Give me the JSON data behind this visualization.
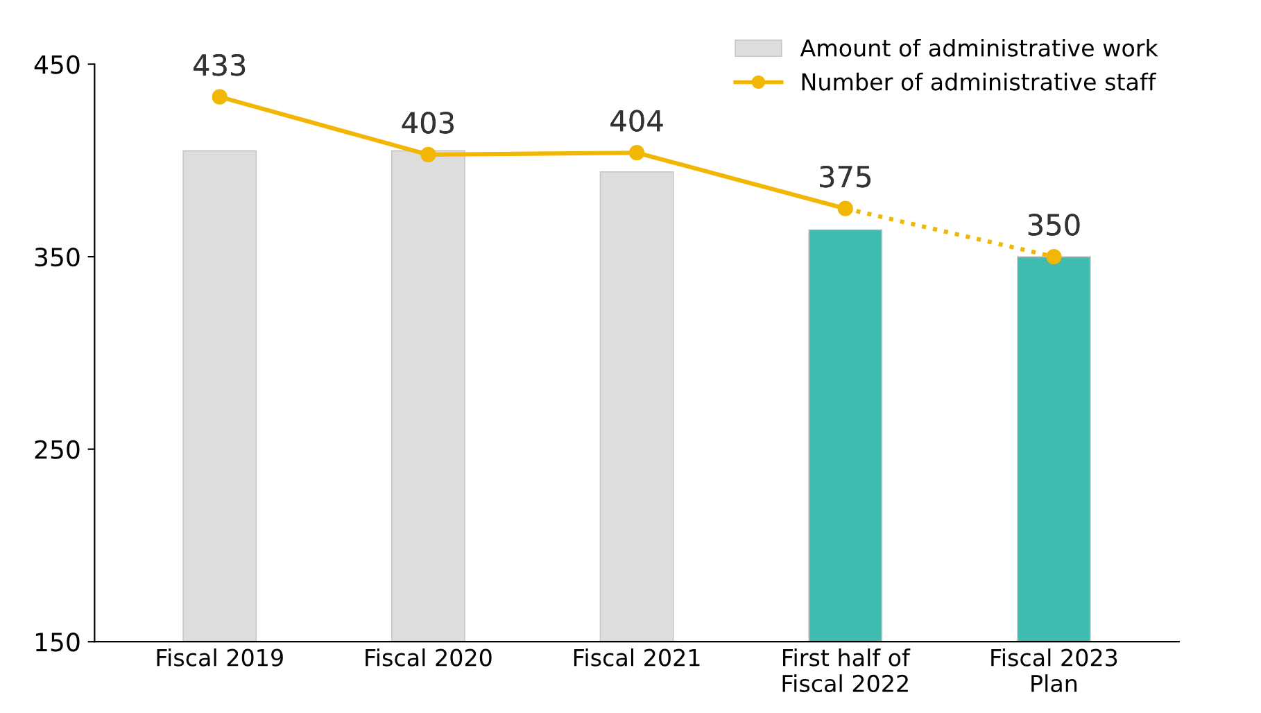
{
  "chart_data": {
    "type": "bar",
    "categories": [
      "Fiscal 2019",
      "Fiscal 2020",
      "Fiscal 2021",
      "First half of\nFiscal 2022",
      "Fiscal 2023\nPlan"
    ],
    "series": [
      {
        "name": "Amount of administrative work",
        "colors": [
          "#dcdddc",
          "#dcdddc",
          "#dcdddc",
          "#40bbb0",
          "#40bbb0"
        ],
        "values": [
          405,
          405,
          394,
          364,
          350
        ]
      },
      {
        "name": "Number of administrative staff",
        "type": "line",
        "color": "#f2b705",
        "marker": "circle",
        "line_style": "solid",
        "data_labels": true,
        "values": [
          433,
          403,
          404,
          375,
          null
        ]
      },
      {
        "type": "line",
        "color": "#f2b705",
        "marker": "circle",
        "line_style": "dotted",
        "data_labels": true,
        "values": [
          null,
          null,
          null,
          null,
          350
        ]
      }
    ],
    "ylim": [
      150,
      450
    ],
    "yticks": [
      150,
      250,
      350,
      450
    ],
    "grid": false,
    "legend": "top right"
  }
}
